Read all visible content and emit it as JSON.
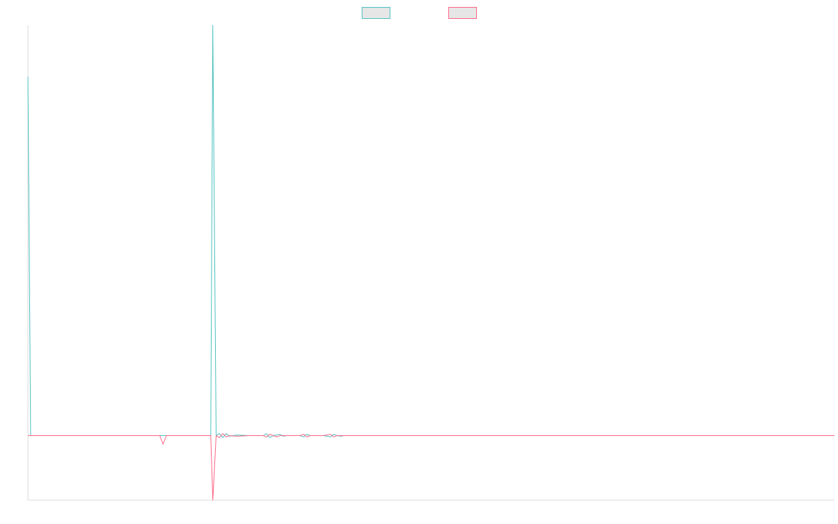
{
  "chart_data": {
    "type": "line",
    "title": "",
    "xlabel": "",
    "ylabel": "",
    "grid": false,
    "legend_position": "top-center",
    "x_range": [
      0,
      1200
    ],
    "ylim": [
      -100,
      635
    ],
    "series": [
      {
        "color": "#4bc0c0",
        "fill": "#e6e6e6",
        "points": [
          [
            0,
            555
          ],
          [
            4,
            0
          ],
          [
            272,
            0
          ],
          [
            275,
            635
          ],
          [
            280,
            0
          ],
          [
            285,
            3
          ],
          [
            290,
            -3
          ],
          [
            295,
            3
          ],
          [
            300,
            -1
          ],
          [
            310,
            1
          ],
          [
            330,
            0
          ],
          [
            350,
            0
          ],
          [
            355,
            3
          ],
          [
            360,
            -3
          ],
          [
            365,
            0
          ],
          [
            375,
            2
          ],
          [
            380,
            -1
          ],
          [
            385,
            0
          ],
          [
            405,
            0
          ],
          [
            410,
            -2
          ],
          [
            415,
            2
          ],
          [
            420,
            0
          ],
          [
            440,
            0
          ],
          [
            450,
            -2
          ],
          [
            455,
            2
          ],
          [
            460,
            0
          ],
          [
            466,
            -1
          ],
          [
            470,
            0
          ],
          [
            1200,
            0
          ]
        ]
      },
      {
        "color": "#ff6384",
        "fill": "#e6e6e6",
        "points": [
          [
            0,
            0
          ],
          [
            196,
            0
          ],
          [
            201,
            -13
          ],
          [
            206,
            0
          ],
          [
            272,
            0
          ],
          [
            275,
            -100
          ],
          [
            280,
            0
          ],
          [
            285,
            -3
          ],
          [
            290,
            3
          ],
          [
            295,
            -2
          ],
          [
            300,
            0
          ],
          [
            310,
            -1
          ],
          [
            330,
            0
          ],
          [
            350,
            0
          ],
          [
            355,
            -2
          ],
          [
            360,
            2
          ],
          [
            365,
            0
          ],
          [
            370,
            -2
          ],
          [
            375,
            0
          ],
          [
            405,
            0
          ],
          [
            410,
            2
          ],
          [
            415,
            -2
          ],
          [
            420,
            0
          ],
          [
            440,
            0
          ],
          [
            450,
            2
          ],
          [
            455,
            -2
          ],
          [
            460,
            0
          ],
          [
            1200,
            0
          ]
        ]
      }
    ]
  }
}
